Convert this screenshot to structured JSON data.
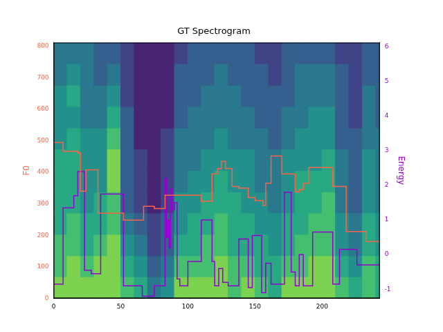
{
  "chart_data": {
    "type": "line",
    "title": "GT Spectrogram",
    "y_label": "F0",
    "y2_label": "Energy",
    "xlim": [
      0,
      243
    ],
    "xticks": [
      0,
      50,
      100,
      150,
      200
    ],
    "ylim": [
      0,
      812
    ],
    "yticks": [
      0,
      100,
      200,
      300,
      400,
      500,
      600,
      700,
      800
    ],
    "y2lim": [
      -1.26,
      6.12
    ],
    "y2ticks": [
      -1,
      0,
      1,
      2,
      3,
      4,
      5,
      6
    ],
    "grid": false,
    "legend": false,
    "series": [
      {
        "name": "F0",
        "color": "#ff6347",
        "line_style": "steps",
        "x": [
          0,
          7,
          18,
          20,
          24,
          33,
          52,
          67,
          75,
          83,
          110,
          118,
          122,
          125,
          128,
          133,
          138,
          145,
          150,
          156,
          158,
          162,
          170,
          180,
          183,
          186,
          190,
          208,
          218,
          233,
          243
        ],
        "values": [
          495,
          467,
          462,
          340,
          408,
          270,
          248,
          292,
          285,
          327,
          308,
          395,
          412,
          435,
          412,
          355,
          350,
          320,
          310,
          295,
          365,
          452,
          395,
          338,
          345,
          365,
          415,
          355,
          212,
          180,
          180
        ]
      },
      {
        "name": "Energy",
        "color": "#9400d3",
        "line_style": "steps",
        "axis": "y2",
        "x": [
          0,
          7,
          15,
          18,
          23,
          28,
          35,
          52,
          66,
          75,
          83,
          84,
          85,
          86,
          87,
          88,
          90,
          92,
          94,
          100,
          110,
          118,
          120,
          123,
          126,
          130,
          138,
          145,
          148,
          155,
          158,
          162,
          172,
          177,
          180,
          183,
          186,
          193,
          208,
          213,
          226,
          243
        ],
        "values": [
          -0.85,
          1.35,
          1.7,
          2.4,
          -0.45,
          -0.55,
          1.75,
          -0.9,
          -1.2,
          -0.9,
          2.2,
          0.5,
          1.0,
          0.2,
          1.9,
          1.3,
          1.5,
          -0.7,
          -0.9,
          -0.2,
          1.0,
          -0.2,
          -0.9,
          -0.4,
          -0.8,
          -0.9,
          0.45,
          -0.95,
          0.55,
          -1.1,
          -0.25,
          -0.85,
          1.8,
          -0.5,
          -0.9,
          0.0,
          -0.9,
          0.65,
          -0.85,
          0.15,
          -0.3,
          -0.3
        ]
      }
    ],
    "spectrogram": {
      "x_edges": [
        0,
        10,
        20,
        30,
        40,
        50,
        60,
        70,
        80,
        90,
        100,
        110,
        120,
        130,
        140,
        150,
        160,
        170,
        180,
        190,
        200,
        210,
        220,
        230,
        240,
        243
      ],
      "y_edges": [
        0,
        68,
        135,
        203,
        271,
        338,
        406,
        474,
        541,
        609,
        677,
        745,
        812
      ],
      "zlim": [
        0,
        10
      ],
      "values": [
        [
          8,
          7,
          7,
          6,
          6,
          6,
          6,
          5,
          5,
          5,
          4,
          4
        ],
        [
          8,
          8,
          7,
          7,
          6,
          6,
          6,
          6,
          5,
          6,
          5,
          4
        ],
        [
          8,
          7,
          6,
          6,
          5,
          5,
          5,
          5,
          4,
          4,
          4,
          4
        ],
        [
          8,
          8,
          7,
          6,
          6,
          5,
          5,
          5,
          4,
          4,
          3,
          3
        ],
        [
          8,
          8,
          8,
          7,
          7,
          8,
          8,
          7,
          6,
          5,
          4,
          3
        ],
        [
          7,
          6,
          5,
          4,
          3,
          3,
          3,
          3,
          3,
          2,
          2,
          2
        ],
        [
          6,
          5,
          4,
          3,
          2,
          2,
          2,
          1,
          1,
          1,
          1,
          1
        ],
        [
          4,
          3,
          2,
          2,
          1,
          1,
          1,
          1,
          1,
          1,
          1,
          1
        ],
        [
          5,
          4,
          3,
          3,
          2,
          2,
          2,
          2,
          1,
          1,
          1,
          1
        ],
        [
          8,
          7,
          6,
          5,
          5,
          4,
          4,
          4,
          3,
          3,
          3,
          2
        ],
        [
          8,
          7,
          6,
          6,
          5,
          5,
          4,
          4,
          4,
          3,
          3,
          3
        ],
        [
          8,
          7,
          7,
          6,
          6,
          5,
          5,
          4,
          4,
          4,
          3,
          3
        ],
        [
          8,
          8,
          7,
          7,
          6,
          6,
          5,
          5,
          4,
          4,
          4,
          3
        ],
        [
          7,
          7,
          6,
          6,
          6,
          5,
          5,
          4,
          4,
          4,
          3,
          3
        ],
        [
          8,
          7,
          6,
          6,
          5,
          5,
          5,
          4,
          4,
          3,
          3,
          3
        ],
        [
          7,
          6,
          6,
          5,
          5,
          4,
          4,
          4,
          3,
          3,
          3,
          2
        ],
        [
          6,
          6,
          5,
          5,
          4,
          4,
          4,
          3,
          3,
          3,
          2,
          2
        ],
        [
          8,
          7,
          6,
          6,
          5,
          5,
          5,
          4,
          4,
          3,
          3,
          3
        ],
        [
          8,
          7,
          7,
          6,
          6,
          6,
          5,
          5,
          4,
          4,
          4,
          3
        ],
        [
          8,
          8,
          7,
          7,
          6,
          6,
          5,
          5,
          5,
          4,
          4,
          3
        ],
        [
          8,
          8,
          7,
          7,
          7,
          6,
          6,
          5,
          5,
          4,
          4,
          3
        ],
        [
          7,
          6,
          5,
          5,
          4,
          4,
          4,
          3,
          3,
          3,
          3,
          2
        ],
        [
          6,
          5,
          4,
          4,
          3,
          3,
          3,
          3,
          2,
          2,
          2,
          2
        ],
        [
          7,
          7,
          6,
          6,
          5,
          5,
          5,
          4,
          4,
          4,
          3,
          3
        ],
        [
          6,
          6,
          5,
          5,
          4,
          4,
          4,
          4,
          3,
          3,
          3,
          3
        ]
      ]
    }
  }
}
